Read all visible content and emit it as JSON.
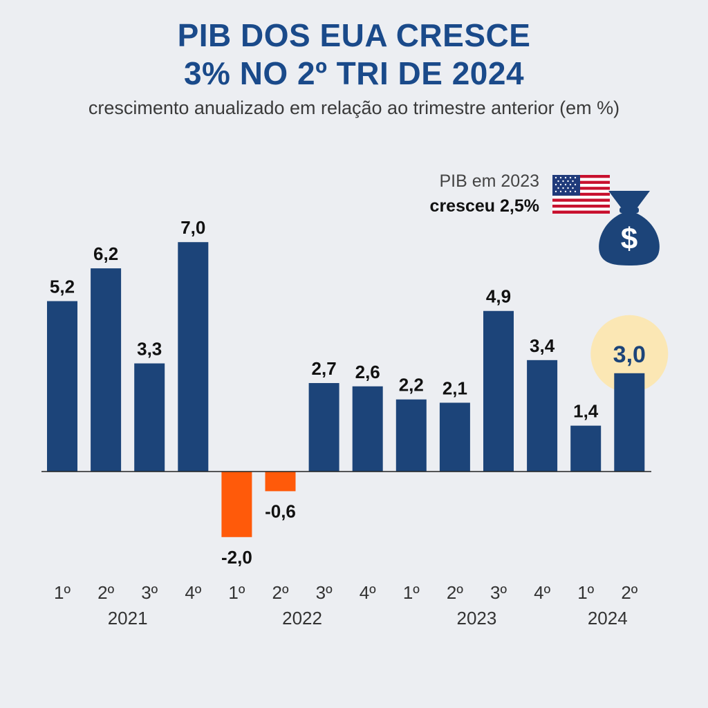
{
  "header": {
    "title_line1": "PIB DOS EUA CRESCE",
    "title_line2": "3% NO 2º TRI DE 2024",
    "subtitle": "crescimento anualizado em relação ao trimestre anterior (em %)"
  },
  "note": {
    "line1": "PIB em 2023",
    "line2": "cresceu 2,5%"
  },
  "icons": {
    "flag": "us-flag-icon",
    "bag": "money-bag-icon",
    "bag_symbol": "$"
  },
  "colors": {
    "positive": "#1c4479",
    "negative": "#ff5a0a",
    "highlight_circle": "#fbe7b4",
    "highlight_label": "#1c4479",
    "title": "#1a4a8a"
  },
  "chart_data": {
    "type": "bar",
    "categories": [
      "1º",
      "2º",
      "3º",
      "4º",
      "1º",
      "2º",
      "3º",
      "4º",
      "1º",
      "2º",
      "3º",
      "4º",
      "1º",
      "2º"
    ],
    "years": [
      {
        "label": "2021",
        "quarters": [
          0,
          3
        ]
      },
      {
        "label": "2022",
        "quarters": [
          4,
          7
        ]
      },
      {
        "label": "2023",
        "quarters": [
          8,
          11
        ]
      },
      {
        "label": "2024",
        "quarters": [
          12,
          13
        ]
      }
    ],
    "values": [
      5.2,
      6.2,
      3.3,
      7.0,
      -2.0,
      -0.6,
      2.7,
      2.6,
      2.2,
      2.1,
      4.9,
      3.4,
      1.4,
      3.0
    ],
    "labels": [
      "5,2",
      "6,2",
      "3,3",
      "7,0",
      "-2,0",
      "-0,6",
      "2,7",
      "2,6",
      "2,2",
      "2,1",
      "4,9",
      "3,4",
      "1,4",
      "3,0"
    ],
    "highlight_index": 13,
    "ylim": [
      -2.0,
      7.0
    ],
    "grid": false,
    "legend": "none"
  }
}
